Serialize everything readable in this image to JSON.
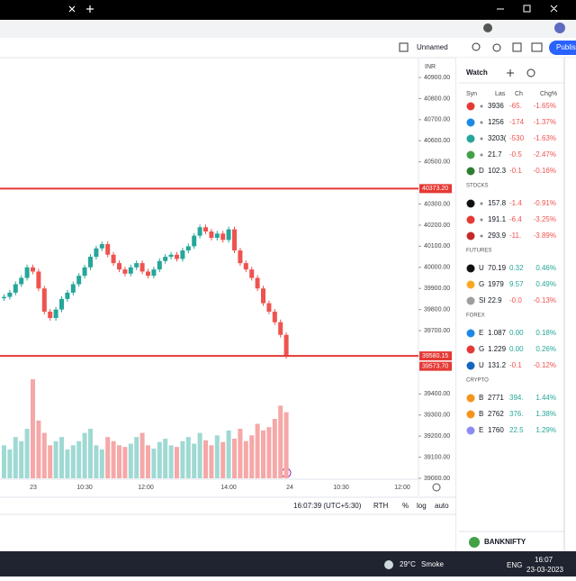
{
  "toolbar": {
    "layout_name": "Unnamed",
    "publish": "Publish"
  },
  "chart": {
    "currency": "INR",
    "yticks": [
      {
        "value": 40900,
        "label": "40900.00"
      },
      {
        "value": 40800,
        "label": "40800.00"
      },
      {
        "value": 40700,
        "label": "40700.00"
      },
      {
        "value": 40600,
        "label": "40600.00"
      },
      {
        "value": 40500,
        "label": "40500.00"
      },
      {
        "value": 40300,
        "label": "40300.00"
      },
      {
        "value": 40200,
        "label": "40200.00"
      },
      {
        "value": 40100,
        "label": "40100.00"
      },
      {
        "value": 40000,
        "label": "40000.00"
      },
      {
        "value": 39900,
        "label": "39900.00"
      },
      {
        "value": 39800,
        "label": "39800.00"
      },
      {
        "value": 39700,
        "label": "39700.00"
      },
      {
        "value": 39400,
        "label": "39400.00"
      },
      {
        "value": 39300,
        "label": "39300.00"
      },
      {
        "value": 39200,
        "label": "39200.00"
      },
      {
        "value": 39100,
        "label": "39100.00"
      },
      {
        "value": 39000,
        "label": "39000.00"
      }
    ],
    "ylim": [
      39000,
      40900
    ],
    "price_lines": [
      {
        "value": 40373.2,
        "label": "40373.20"
      },
      {
        "value": 39580.15,
        "label": "39580.15"
      }
    ],
    "last_price": {
      "value": 39573.7,
      "label": "39573.70"
    },
    "time_labels": [
      "23",
      "10:30",
      "12:00",
      "14:00",
      "24",
      "10:30",
      "12:00"
    ],
    "closes": [
      39860,
      39880,
      39920,
      39950,
      40000,
      39980,
      39900,
      39790,
      39760,
      39800,
      39850,
      39880,
      39920,
      39960,
      40000,
      40050,
      40090,
      40110,
      40060,
      40020,
      39990,
      39970,
      40000,
      40020,
      39980,
      39960,
      39990,
      40030,
      40050,
      40060,
      40040,
      40080,
      40100,
      40150,
      40190,
      40170,
      40140,
      40160,
      40130,
      40180,
      40080,
      40020,
      39990,
      39950,
      39900,
      39830,
      39790,
      39740,
      39680,
      39580
    ],
    "volumes": [
      40,
      35,
      50,
      45,
      60,
      120,
      70,
      55,
      40,
      45,
      50,
      35,
      40,
      45,
      55,
      60,
      40,
      35,
      50,
      45,
      40,
      38,
      42,
      50,
      55,
      40,
      36,
      44,
      48,
      40,
      38,
      45,
      50,
      42,
      55,
      46,
      40,
      52,
      44,
      58,
      48,
      60,
      45,
      52,
      66,
      58,
      62,
      72,
      88,
      80
    ],
    "bottom_bar": {
      "clock": "16:07:39 (UTC+5:30)",
      "rth": "RTH",
      "percent": "%",
      "log": "log",
      "auto": "auto"
    }
  },
  "watchlist": {
    "title": "Watch",
    "columns": [
      "Syn",
      "Las",
      "Ch",
      "Chg%"
    ],
    "sections": [
      {
        "rows": [
          {
            "icon_color": "#e53935",
            "last": "3936",
            "change": "-65.",
            "change_pct": "-1.65%"
          },
          {
            "icon_color": "#1e88e5",
            "last": "1256",
            "change": "-174",
            "change_pct": "-1.37%"
          },
          {
            "icon_color": "#26a69a",
            "last": "3203(",
            "change": "-530",
            "change_pct": "-1.63%"
          },
          {
            "icon_color": "#43a047",
            "last": "21.7",
            "change": "-0.5",
            "change_pct": "-2.47%"
          },
          {
            "icon_color": "#2e7d32",
            "symbol": "D",
            "last": "102.3",
            "change": "-0.1",
            "change_pct": "-0.16%"
          }
        ]
      },
      {
        "title": "STOCKS",
        "rows": [
          {
            "icon_color": "#111111",
            "last": "157.8",
            "change": "-1.4",
            "change_pct": "-0.91%"
          },
          {
            "icon_color": "#e53935",
            "last": "191.1",
            "change": "-6.4",
            "change_pct": "-3.25%"
          },
          {
            "icon_color": "#c62828",
            "last": "293.9",
            "change": "-11.",
            "change_pct": "-3.89%"
          }
        ]
      },
      {
        "title": "FUTURES",
        "rows": [
          {
            "icon_color": "#111111",
            "symbol": "U",
            "last": "70.19",
            "change": "0.32",
            "change_pct": "0.46%"
          },
          {
            "icon_color": "#f9a825",
            "symbol": "G",
            "last": "1979",
            "change": "9.57",
            "change_pct": "0.49%"
          },
          {
            "icon_color": "#9e9e9e",
            "symbol": "SI",
            "last": "22.9",
            "change": "-0.0",
            "change_pct": "-0.13%"
          }
        ]
      },
      {
        "title": "FOREX",
        "rows": [
          {
            "icon_color": "#1e88e5",
            "symbol": "E",
            "last": "1.087",
            "change": "0.00",
            "change_pct": "0.18%"
          },
          {
            "icon_color": "#e53935",
            "symbol": "G",
            "last": "1.229",
            "change": "0.00",
            "change_pct": "0.26%"
          },
          {
            "icon_color": "#1565c0",
            "symbol": "U",
            "last": "131.2",
            "change": "-0.1",
            "change_pct": "-0.12%"
          }
        ]
      },
      {
        "title": "CRYPTO",
        "rows": [
          {
            "icon_color": "#f7931a",
            "symbol": "B",
            "last": "2771",
            "change": "394.",
            "change_pct": "1.44%"
          },
          {
            "icon_color": "#f7931a",
            "symbol": "B",
            "last": "2762",
            "change": "376.",
            "change_pct": "1.38%"
          },
          {
            "icon_color": "#8c8cf0",
            "symbol": "E",
            "last": "1760",
            "change": "22.5",
            "change_pct": "1.29%"
          }
        ]
      }
    ],
    "footer": "BANKNIFTY"
  },
  "taskbar": {
    "temp": "29°C",
    "weather": "Smoke",
    "lang": "ENG",
    "time": "16:07",
    "date": "23-03-2023"
  }
}
